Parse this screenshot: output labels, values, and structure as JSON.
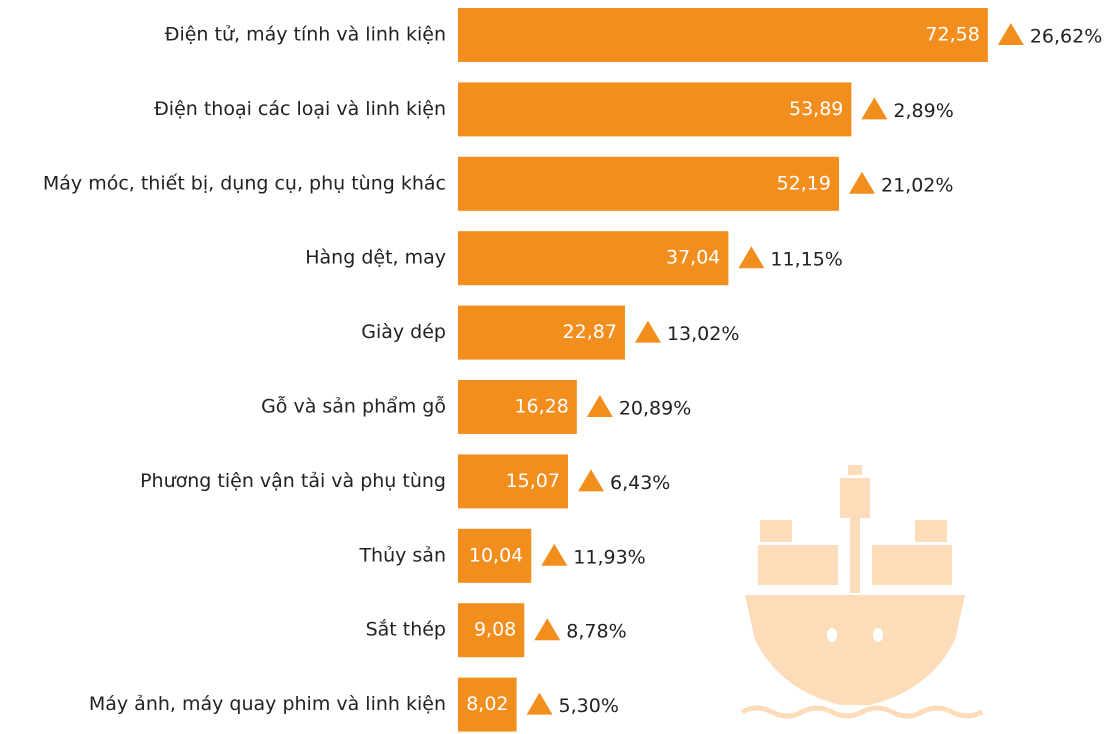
{
  "chart_data": {
    "type": "bar",
    "orientation": "horizontal",
    "color": "#f28e1e",
    "categories": [
      "Điện tử, máy tính và linh kiện",
      "Điện thoại các loại và linh kiện",
      "Máy móc, thiết bị, dụng cụ, phụ tùng khác",
      "Hàng dệt, may",
      "Giày dép",
      "Gỗ và sản phẩm gỗ",
      "Phương tiện vận tải và phụ tùng",
      "Thủy sản",
      "Sắt thép",
      "Máy ảnh, máy quay phim và linh kiện"
    ],
    "values": [
      72.58,
      53.89,
      52.19,
      37.04,
      22.87,
      16.28,
      15.07,
      10.04,
      9.08,
      8.02
    ],
    "value_labels": [
      "72,58",
      "53,89",
      "52,19",
      "37,04",
      "22,87",
      "16,28",
      "15,07",
      "10,04",
      "9,08",
      "8,02"
    ],
    "growth": {
      "values": [
        26.62,
        2.89,
        21.02,
        11.15,
        13.02,
        20.89,
        6.43,
        11.93,
        8.78,
        5.3
      ],
      "value_labels": [
        "26,62%",
        "2,89%",
        "21,02%",
        "11,15%",
        "13,02%",
        "20,89%",
        "6,43%",
        "11,93%",
        "8,78%",
        "5,30%"
      ]
    }
  }
}
